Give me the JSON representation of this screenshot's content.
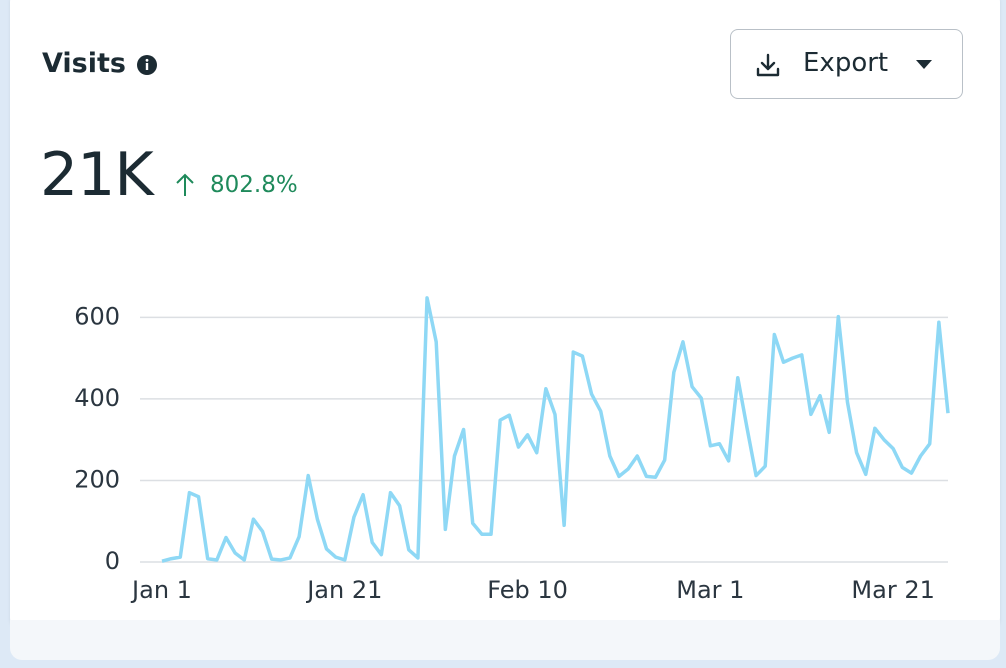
{
  "header": {
    "title": "Visits",
    "button": "Export"
  },
  "metric": {
    "value": "21K",
    "change": "802.8%"
  },
  "chart_data": {
    "type": "line",
    "color": "#8ed8f5",
    "grid": true,
    "ylim": [
      0,
      650
    ],
    "yticks": [
      0,
      200,
      400,
      600
    ],
    "categories": [
      "Jan 1",
      null,
      null,
      null,
      null,
      null,
      null,
      null,
      null,
      null,
      null,
      null,
      null,
      null,
      null,
      null,
      null,
      null,
      null,
      null,
      "Jan 21",
      null,
      null,
      null,
      null,
      null,
      null,
      null,
      null,
      null,
      null,
      null,
      null,
      null,
      null,
      null,
      null,
      null,
      null,
      null,
      "Feb 10",
      null,
      null,
      null,
      null,
      null,
      null,
      null,
      null,
      null,
      null,
      null,
      null,
      null,
      null,
      null,
      null,
      null,
      null,
      null,
      "Mar 1",
      null,
      null,
      null,
      null,
      null,
      null,
      null,
      null,
      null,
      null,
      null,
      null,
      null,
      null,
      null,
      null,
      null,
      null,
      null,
      "Mar 21",
      null,
      null,
      null,
      null,
      null,
      null
    ],
    "values": [
      2,
      8,
      12,
      170,
      160,
      8,
      5,
      60,
      22,
      5,
      105,
      75,
      7,
      5,
      10,
      62,
      212,
      105,
      32,
      12,
      5,
      110,
      165,
      48,
      18,
      170,
      138,
      30,
      10,
      648,
      540,
      80,
      260,
      325,
      95,
      68,
      68,
      348,
      360,
      282,
      312,
      268,
      425,
      362,
      90,
      515,
      505,
      412,
      370,
      260,
      210,
      228,
      260,
      210,
      208,
      250,
      465,
      540,
      430,
      402,
      285,
      290,
      248,
      452,
      330,
      212,
      235,
      558,
      490,
      500,
      508,
      362,
      408,
      318,
      602,
      392,
      268,
      215,
      328,
      300,
      278,
      232,
      218,
      260,
      290,
      588,
      365
    ]
  }
}
